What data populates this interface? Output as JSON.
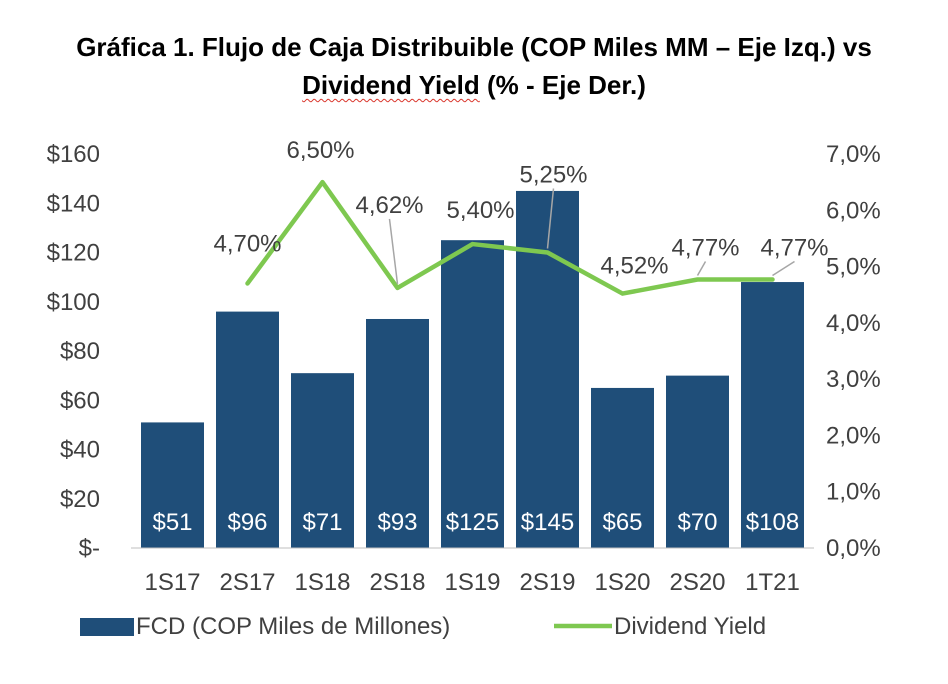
{
  "chart_data": {
    "type": "bar",
    "title_line1": "Gráfica 1. Flujo de Caja Distribuible (COP Miles MM – Eje Izq.) vs",
    "title_line2_underlined": "Dividend Yield",
    "title_line2_rest": " (% - Eje Der.)",
    "categories": [
      "1S17",
      "2S17",
      "1S18",
      "2S18",
      "1S19",
      "2S19",
      "1S20",
      "2S20",
      "1T21"
    ],
    "y_left": {
      "ylim": [
        0,
        160
      ],
      "ticks": [
        "$-",
        "$20",
        "$40",
        "$60",
        "$80",
        "$100",
        "$120",
        "$140",
        "$160"
      ]
    },
    "y_right": {
      "ylim": [
        0,
        7
      ],
      "ticks": [
        "0,0%",
        "1,0%",
        "2,0%",
        "3,0%",
        "4,0%",
        "5,0%",
        "6,0%",
        "7,0%"
      ]
    },
    "series": [
      {
        "name": "FCD (COP Miles de Millones)",
        "type": "bar",
        "axis": "left",
        "color": "#1f4e79",
        "values": [
          51,
          96,
          71,
          93,
          125,
          145,
          65,
          70,
          108
        ],
        "labels": [
          "$51",
          "$96",
          "$71",
          "$93",
          "$125",
          "$145",
          "$65",
          "$70",
          "$108"
        ]
      },
      {
        "name": "Dividend Yield",
        "type": "line",
        "axis": "right",
        "color": "#7ec850",
        "values": [
          null,
          4.7,
          6.5,
          4.62,
          5.4,
          5.25,
          4.52,
          4.77,
          4.77
        ],
        "labels": [
          null,
          "4,70%",
          "6,50%",
          "4,62%",
          "5,40%",
          "5,25%",
          "4,52%",
          "4,77%",
          "4,77%"
        ]
      }
    ],
    "grid": false,
    "legend": "bottom"
  }
}
